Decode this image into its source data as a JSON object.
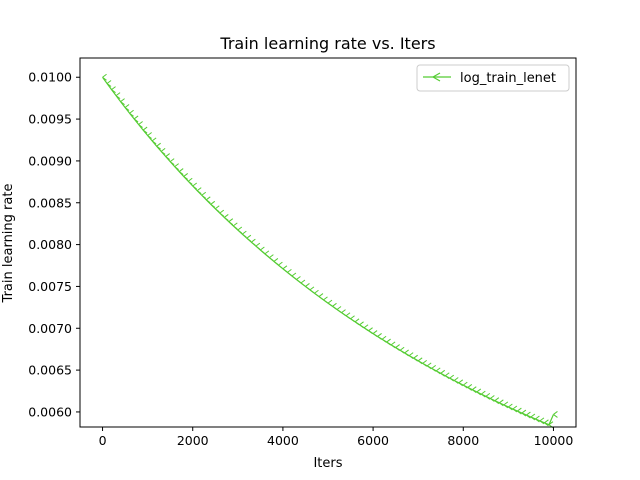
{
  "chart_data": {
    "type": "line",
    "title": "Train learning rate  vs. Iters",
    "xlabel": "Iters",
    "ylabel": "Train learning rate",
    "xlim": [
      -500,
      10500
    ],
    "ylim": [
      0.00582,
      0.01023
    ],
    "xticks": [
      0,
      2000,
      4000,
      6000,
      8000,
      10000
    ],
    "xtick_labels": [
      "0",
      "2000",
      "4000",
      "6000",
      "8000",
      "10000"
    ],
    "yticks": [
      0.006,
      0.0065,
      0.007,
      0.0075,
      0.008,
      0.0085,
      0.009,
      0.0095,
      0.01
    ],
    "ytick_labels": [
      "0.0060",
      "0.0065",
      "0.0070",
      "0.0075",
      "0.0080",
      "0.0085",
      "0.0090",
      "0.0095",
      "0.0100"
    ],
    "grid": false,
    "legend_position": "top-right",
    "series": [
      {
        "name": "log_train_lenet",
        "color": "#55cc33",
        "marker": "tri_left",
        "x": [
          0,
          100,
          200,
          300,
          400,
          500,
          600,
          700,
          800,
          900,
          1000,
          1100,
          1200,
          1300,
          1400,
          1500,
          1600,
          1700,
          1800,
          1900,
          2000,
          2100,
          2200,
          2300,
          2400,
          2500,
          2600,
          2700,
          2800,
          2900,
          3000,
          3100,
          3200,
          3300,
          3400,
          3500,
          3600,
          3700,
          3800,
          3900,
          4000,
          4100,
          4200,
          4300,
          4400,
          4500,
          4600,
          4700,
          4800,
          4900,
          5000,
          5100,
          5200,
          5300,
          5400,
          5500,
          5600,
          5700,
          5800,
          5900,
          6000,
          6100,
          6200,
          6300,
          6400,
          6500,
          6600,
          6700,
          6800,
          6900,
          7000,
          7100,
          7200,
          7300,
          7400,
          7500,
          7600,
          7700,
          7800,
          7900,
          8000,
          8100,
          8200,
          8300,
          8400,
          8500,
          8600,
          8700,
          8800,
          8900,
          9000,
          9100,
          9200,
          9300,
          9400,
          9500,
          9600,
          9700,
          9800,
          9900,
          10000
        ],
        "y": [
          0.01,
          0.0099255,
          0.0098522,
          0.00978,
          0.0097089,
          0.0096388,
          0.0095698,
          0.0095018,
          0.0094348,
          0.0093687,
          0.0093036,
          0.0092394,
          0.0091762,
          0.0091138,
          0.0090523,
          0.0089916,
          0.0089318,
          0.0088728,
          0.0088146,
          0.0087572,
          0.0087006,
          0.0086447,
          0.0085896,
          0.0085352,
          0.0084816,
          0.0084286,
          0.0083764,
          0.0083248,
          0.0082739,
          0.0082236,
          0.008174,
          0.008125,
          0.0080767,
          0.0080289,
          0.0079818,
          0.0079352,
          0.0078892,
          0.0078438,
          0.0077989,
          0.0077546,
          0.0077108,
          0.0076676,
          0.0076248,
          0.0075826,
          0.0075409,
          0.0074997,
          0.007459,
          0.0074187,
          0.007379,
          0.0073397,
          0.0073009,
          0.0072625,
          0.0072245,
          0.0071871,
          0.00715,
          0.0071134,
          0.0070772,
          0.0070414,
          0.007006,
          0.006971,
          0.0069364,
          0.0069022,
          0.0068684,
          0.006835,
          0.0068019,
          0.0067693,
          0.006737,
          0.006705,
          0.0066734,
          0.0066422,
          0.0066113,
          0.0065807,
          0.0065505,
          0.0065206,
          0.006491,
          0.0064618,
          0.0064329,
          0.0064043,
          0.006376,
          0.006348,
          0.0063203,
          0.0062929,
          0.0062658,
          0.006239,
          0.0062125,
          0.0061863,
          0.0061604,
          0.0061347,
          0.0061093,
          0.0060842,
          0.0060594,
          0.0060348,
          0.0060105,
          0.0059864,
          0.0059626,
          0.0059391,
          0.0059158,
          0.0058928,
          0.00587,
          0.0058474,
          0.00597
        ]
      }
    ]
  }
}
